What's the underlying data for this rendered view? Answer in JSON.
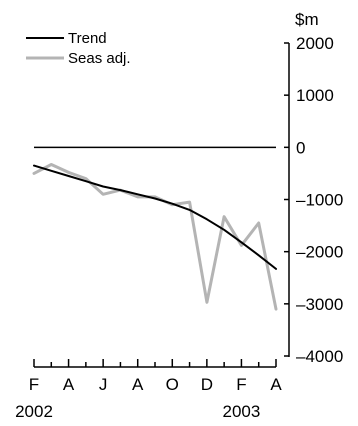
{
  "chart_data": {
    "type": "line",
    "title": "",
    "xlabel": "",
    "ylabel": "$m",
    "ylim": [
      -4000,
      2000
    ],
    "y_ticks": [
      2000,
      1000,
      0,
      -1000,
      -2000,
      -3000,
      -4000
    ],
    "y_tick_labels": [
      "2000",
      "1000",
      "0",
      "–1000",
      "–2000",
      "–3000",
      "–4000"
    ],
    "y_axis_side": "right",
    "grid": false,
    "zero_line": true,
    "legend_placement": "top-left",
    "x_labels": [
      "F",
      "A",
      "J",
      "A",
      "O",
      "D",
      "F",
      "A"
    ],
    "x_label_months": [
      0,
      2,
      4,
      6,
      8,
      10,
      12,
      14
    ],
    "year_labels": [
      {
        "text": "2002",
        "month": 0
      },
      {
        "text": "2003",
        "month": 12
      }
    ],
    "x": [
      "Feb 2002",
      "Mar 2002",
      "Apr 2002",
      "May 2002",
      "Jun 2002",
      "Jul 2002",
      "Aug 2002",
      "Sep 2002",
      "Oct 2002",
      "Nov 2002",
      "Dec 2002",
      "Jan 2003",
      "Feb 2003",
      "Mar 2003",
      "Apr 2003"
    ],
    "series": [
      {
        "name": "Trend",
        "color": "#000000",
        "values": [
          -350,
          -450,
          -550,
          -650,
          -750,
          -820,
          -900,
          -980,
          -1080,
          -1200,
          -1380,
          -1580,
          -1820,
          -2070,
          -2330
        ]
      },
      {
        "name": "Seas adj.",
        "color": "#b4b4b4",
        "values": [
          -500,
          -330,
          -480,
          -600,
          -900,
          -820,
          -950,
          -950,
          -1100,
          -1050,
          -2970,
          -1330,
          -1880,
          -1450,
          -3100
        ]
      }
    ]
  }
}
